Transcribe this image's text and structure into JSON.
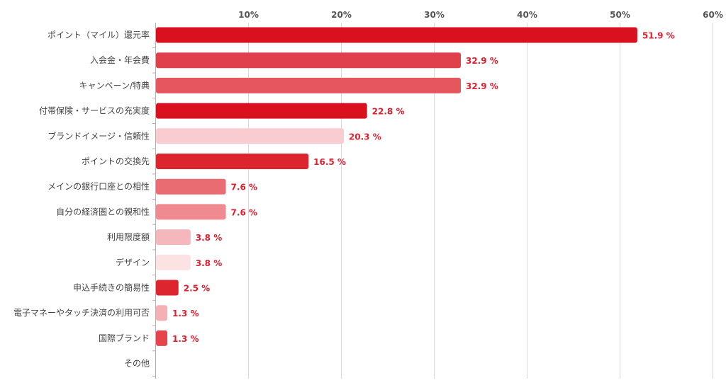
{
  "chart_data": {
    "type": "bar",
    "orientation": "horizontal",
    "title": "",
    "xlabel": "",
    "ylabel": "",
    "xlim": [
      0,
      60
    ],
    "ticks": [
      10,
      20,
      30,
      40,
      50,
      60
    ],
    "tick_labels": [
      "10%",
      "20%",
      "30%",
      "40%",
      "50%",
      "60%"
    ],
    "axis_position": "top",
    "grid": true,
    "legend": false,
    "label_color": "#e01e2e",
    "categories": [
      "ポイント（マイル）還元率",
      "入会金・年会費",
      "キャンペーン/特典",
      "付帯保険・サービスの充実度",
      "ブランドイメージ・信頼性",
      "ポイントの交換先",
      "メインの銀行口座との相性",
      "自分の経済圏との親和性",
      "利用限度額",
      "デザイン",
      "申込手続きの簡易性",
      "電子マネーやタッチ決済の利用可否",
      "国際ブランド",
      "その他"
    ],
    "values": [
      51.9,
      32.9,
      32.9,
      22.8,
      20.3,
      16.5,
      7.6,
      7.6,
      3.8,
      3.8,
      2.5,
      1.3,
      1.3,
      0
    ],
    "value_labels": [
      "51.9 %",
      "32.9 %",
      "32.9 %",
      "22.8 %",
      "20.3 %",
      "16.5 %",
      "7.6 %",
      "7.6 %",
      "3.8 %",
      "3.8 %",
      "2.5 %",
      "1.3 %",
      "1.3 %",
      ""
    ],
    "bar_colors": [
      "#d9111f",
      "#e0404b",
      "#e5565f",
      "#d9111f",
      "#f8ccd0",
      "#dd2530",
      "#ea6c73",
      "#ee8a90",
      "#f4b8bc",
      "#fbe3e4",
      "#dd2530",
      "#f4b0b4",
      "#e6434d",
      "#f4b0b4"
    ]
  }
}
